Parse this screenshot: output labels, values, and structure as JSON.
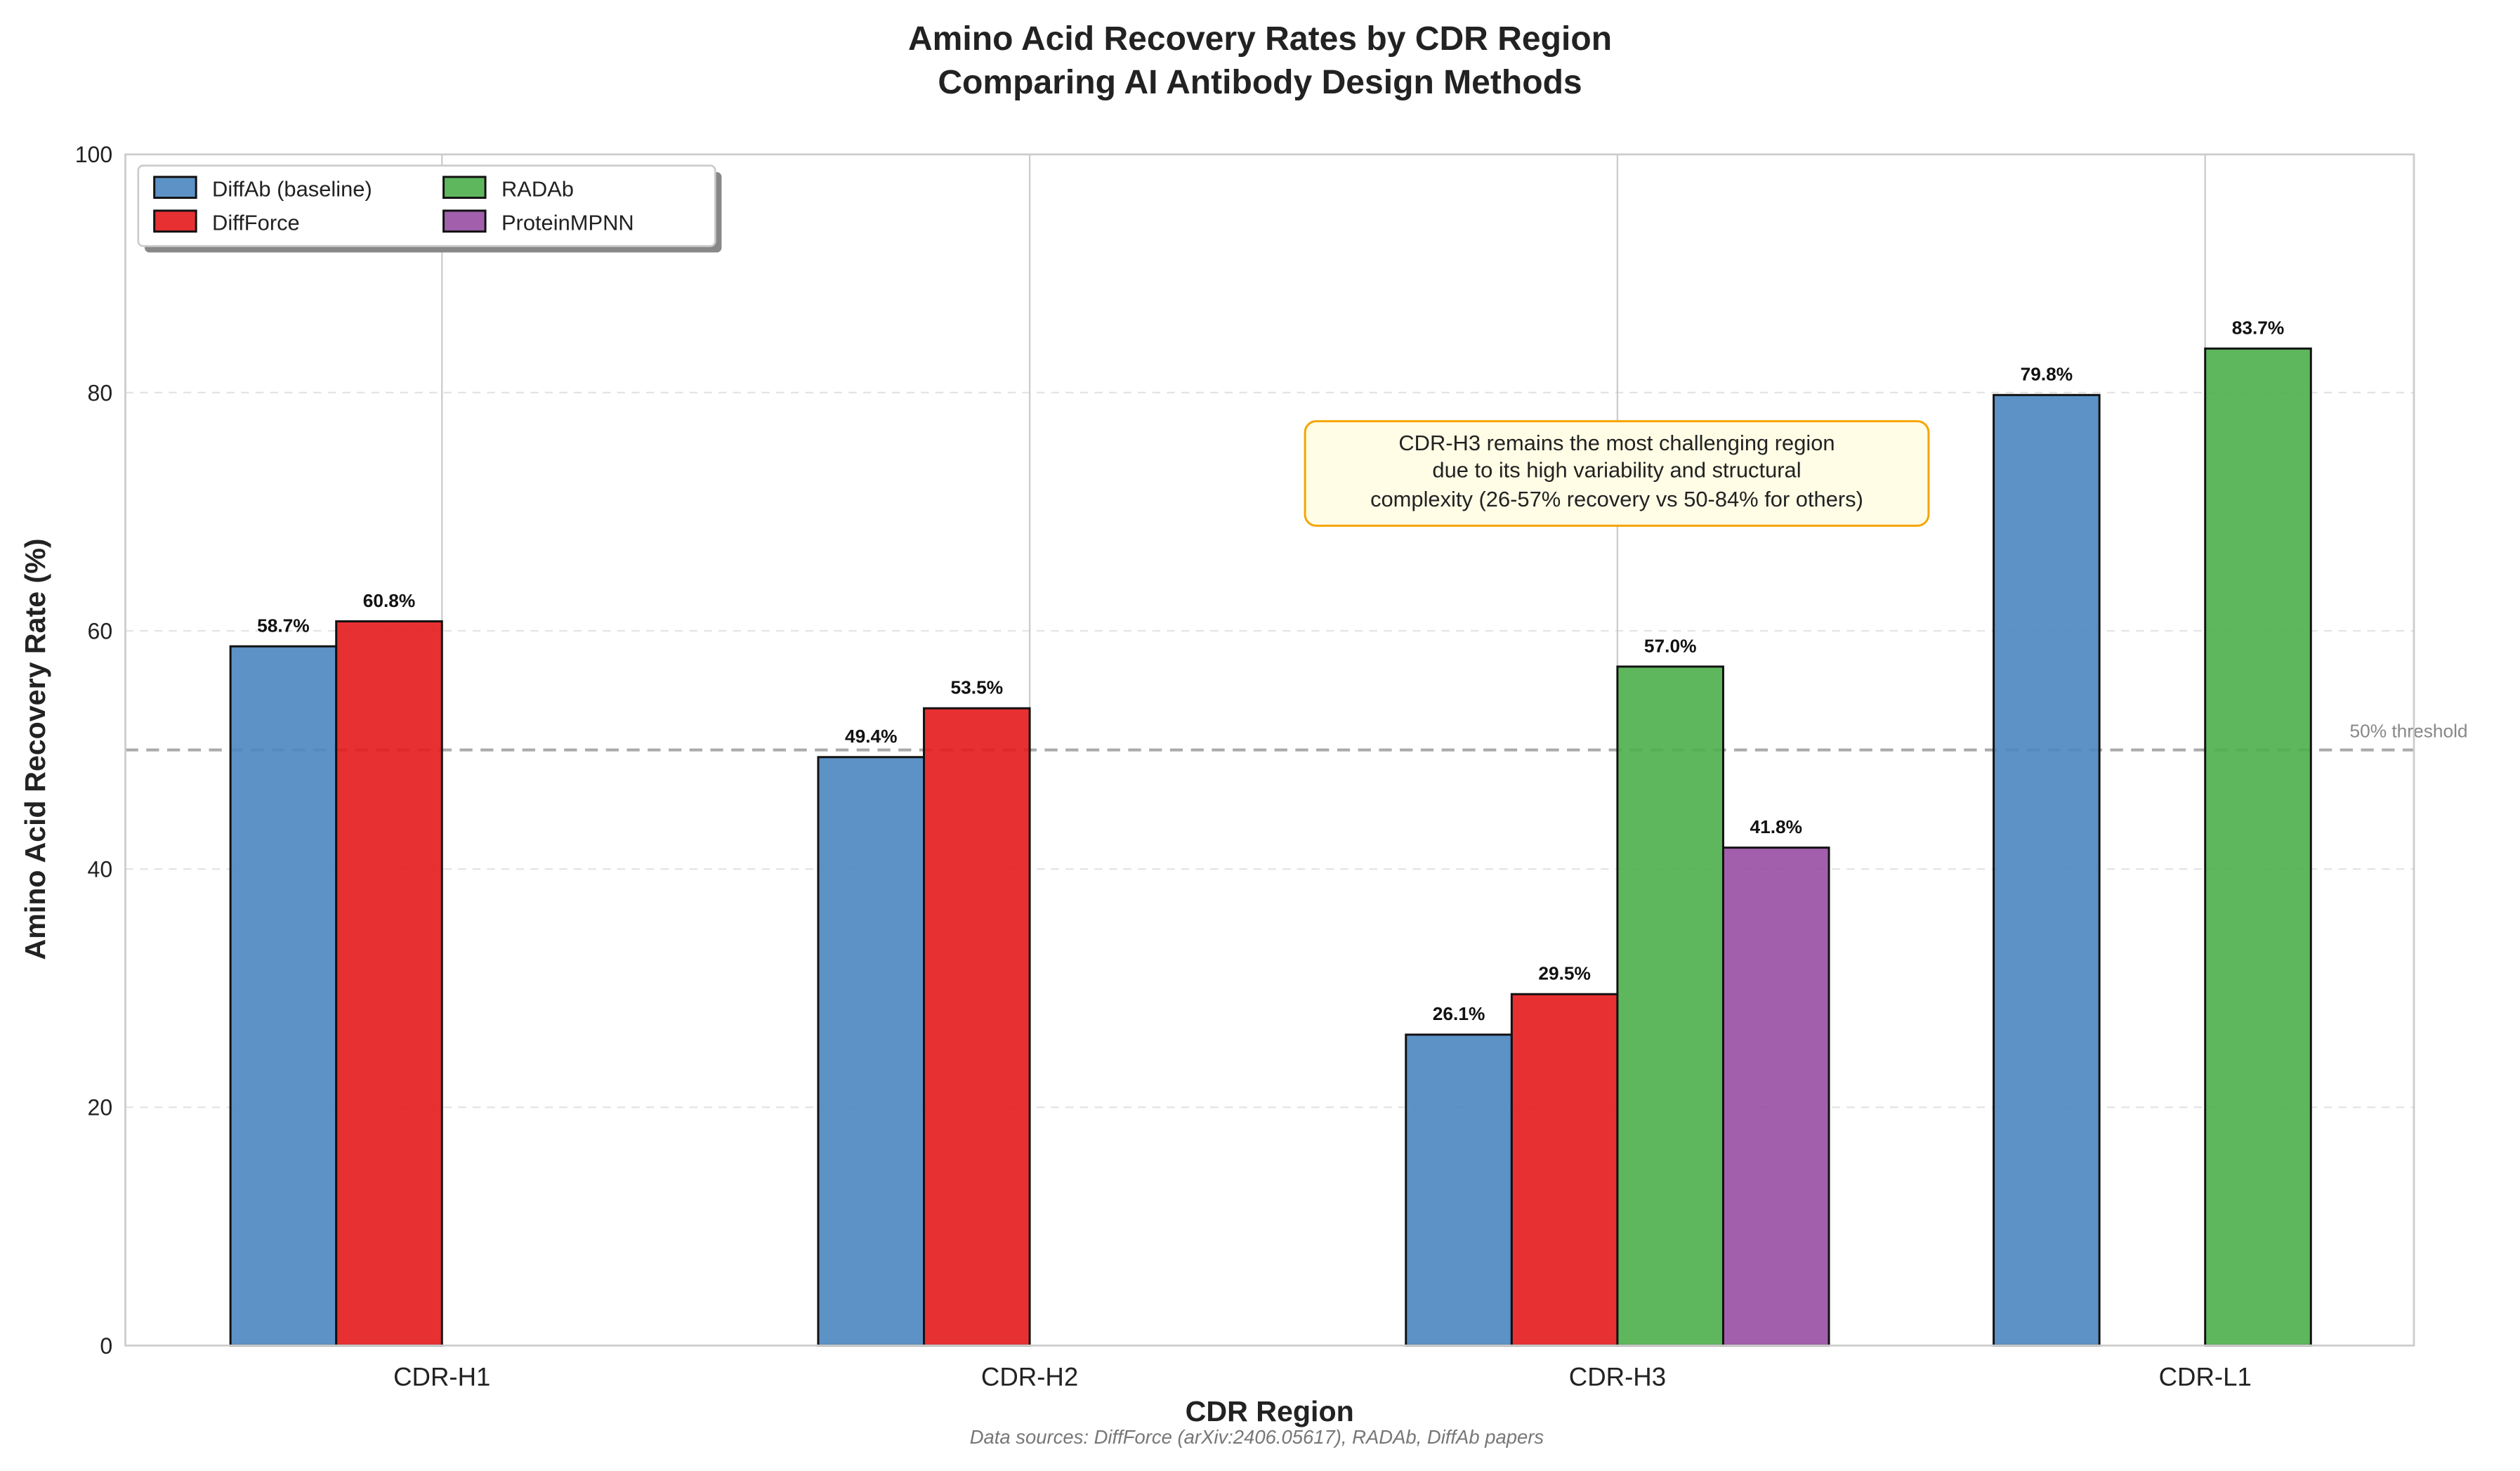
{
  "chart_data": {
    "type": "bar",
    "title": "Amino Acid Recovery Rates by CDR Region",
    "subtitle": "Comparing AI Antibody Design Methods",
    "xlabel": "CDR Region",
    "ylabel": "Amino Acid Recovery Rate (%)",
    "ylim": [
      0,
      100
    ],
    "yticks": [
      0,
      20,
      40,
      60,
      80,
      100
    ],
    "grid": true,
    "legend_position": "top-left",
    "categories": [
      "CDR-H1",
      "CDR-H2",
      "CDR-H3",
      "CDR-L1"
    ],
    "series": [
      {
        "name": "DiffAb (baseline)",
        "color": "#4a86c0",
        "values": [
          58.7,
          49.4,
          26.1,
          79.8
        ]
      },
      {
        "name": "DiffForce",
        "color": "#e41a1c",
        "values": [
          60.8,
          53.5,
          29.5,
          null
        ]
      },
      {
        "name": "RADAb",
        "color": "#4daf4a",
        "values": [
          null,
          null,
          57.0,
          83.7
        ]
      },
      {
        "name": "ProteinMPNN",
        "color": "#984ea3",
        "values": [
          null,
          null,
          41.8,
          null
        ]
      }
    ],
    "threshold": {
      "value": 50,
      "label": "50% threshold"
    },
    "annotation": {
      "lines": [
        "CDR-H3 remains the most challenging region",
        "due to its high variability and structural",
        "complexity (26-57% recovery vs 50-84% for others)"
      ]
    },
    "footnote": "Data sources: DiffForce (arXiv:2406.05617), RADAb, DiffAb papers"
  }
}
